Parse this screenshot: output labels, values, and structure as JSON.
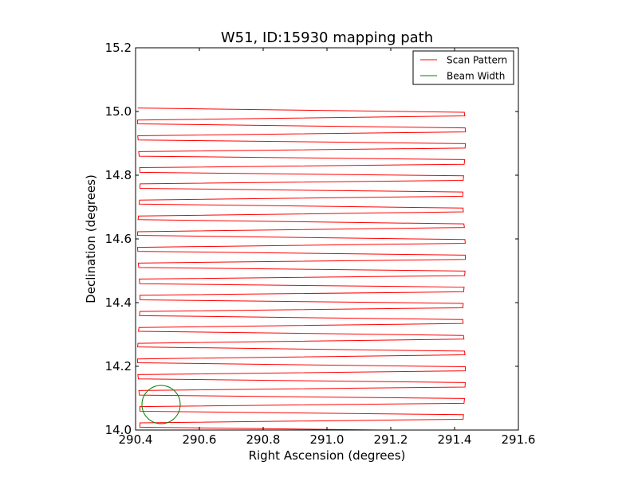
{
  "chart_data": {
    "type": "line",
    "title": "W51, ID:15930 mapping path",
    "xlabel": "Right Ascension (degrees)",
    "ylabel": "Declination (degrees)",
    "xlim": [
      290.4,
      291.6
    ],
    "ylim": [
      14.0,
      15.2
    ],
    "xticks": [
      "290.4",
      "290.6",
      "290.8",
      "291.0",
      "291.2",
      "291.4",
      "291.6"
    ],
    "yticks": [
      "14.0",
      "14.2",
      "14.4",
      "14.6",
      "14.8",
      "15.0",
      "15.2"
    ],
    "grid": false,
    "legend_position": "top-right",
    "series": [
      {
        "name": "Scan Pattern",
        "kind": "raster-scan",
        "color": "#ff0000",
        "ra_left": 290.41,
        "ra_right": 291.43,
        "dec_start": 15.01,
        "dec_end": 14.01,
        "row_spacing_dec": 0.025,
        "row_count": 41
      },
      {
        "name": "Beam Width",
        "kind": "circle",
        "color": "#008000",
        "center_ra": 290.48,
        "center_dec": 14.08,
        "radius_deg": 0.06
      }
    ]
  }
}
